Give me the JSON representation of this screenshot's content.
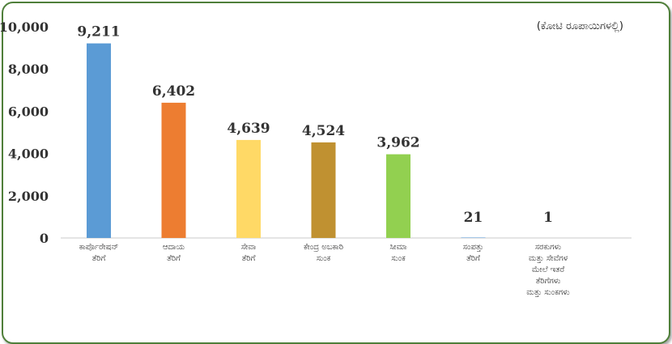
{
  "chart_data": {
    "type": "bar",
    "unit_note": "(ಕೋಟಿ ರೂಪಾಯಿಗಳಲ್ಲಿ)",
    "ylim": [
      0,
      10000
    ],
    "yticks": [
      "0",
      "2,000",
      "4,000",
      "6,000",
      "8,000",
      "10,000"
    ],
    "grid": false,
    "categories": [
      [
        "ಕಾರ್ಪೊರೇಷನ್",
        "ತೆರಿಗೆ"
      ],
      [
        "ಆದಾಯ",
        "ತೆರಿಗೆ"
      ],
      [
        "ಸೇವಾ",
        "ತೆರಿಗೆ"
      ],
      [
        "ಕೇಂದ್ರ ಅಬಕಾರಿ",
        "ಸುಂಕ"
      ],
      [
        "ಸೀಮಾ",
        "ಸುಂಕ"
      ],
      [
        "ಸಂಪತ್ತು",
        "ತೆರಿಗೆ"
      ],
      [
        "ಸರಕುಗಳು",
        "ಮತ್ತು ಸೇವೆಗಳ",
        "ಮೇಲೆ ಇತರೆ",
        "ತೆರಿಗೆಗಳು",
        "ಮತ್ತು ಸುಂಕಗಳು"
      ]
    ],
    "values": [
      9211,
      6402,
      4639,
      4524,
      3962,
      21,
      1
    ],
    "value_labels": [
      "9,211",
      "6,402",
      "4,639",
      "4,524",
      "3,962",
      "21",
      "1"
    ],
    "colors": [
      "#5b9bd5",
      "#ed7d31",
      "#ffd966",
      "#c09131",
      "#92d050",
      "#5b9bd5",
      "#ed7d31"
    ]
  }
}
